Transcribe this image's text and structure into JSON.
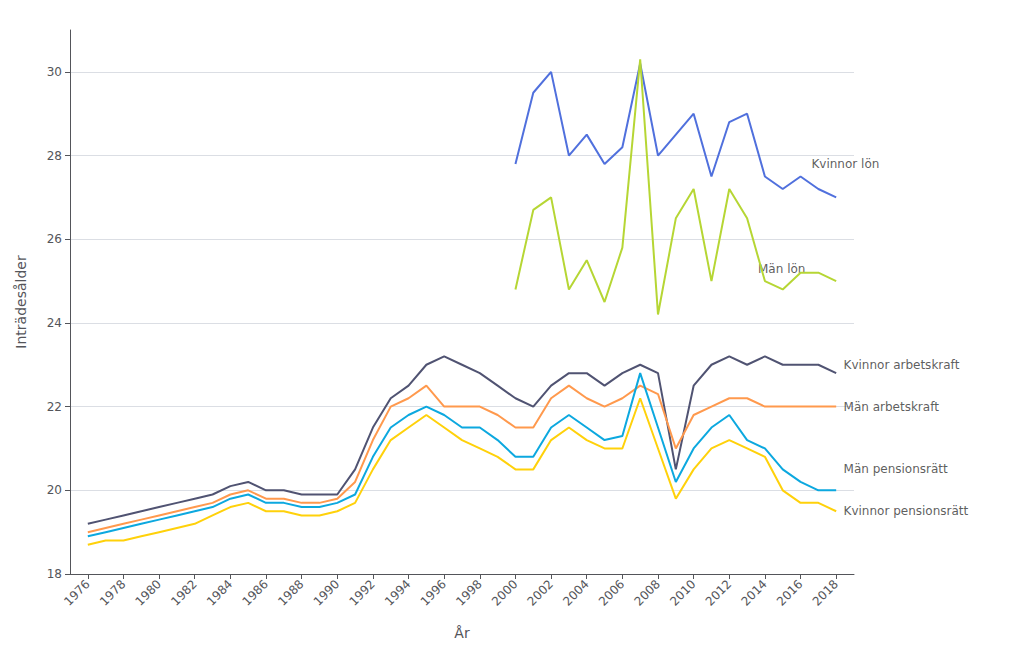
{
  "chart_data": {
    "type": "line",
    "xlabel": "År",
    "ylabel": "Inträdesålder",
    "xlim": [
      1975,
      2019
    ],
    "xticks": [
      1976,
      1978,
      1980,
      1982,
      1984,
      1986,
      1988,
      1990,
      1992,
      1994,
      1996,
      1998,
      2000,
      2002,
      2004,
      2006,
      2008,
      2010,
      2012,
      2014,
      2016,
      2018
    ],
    "ylim": [
      18,
      31
    ],
    "yticks": [
      18,
      20,
      22,
      24,
      26,
      28,
      30
    ],
    "grid": true,
    "series": [
      {
        "name": "Kvinnor lön",
        "x": [
          2000,
          2001,
          2002,
          2003,
          2004,
          2005,
          2006,
          2007,
          2008,
          2009,
          2010,
          2011,
          2012,
          2013,
          2014,
          2015,
          2016,
          2017,
          2018
        ],
        "values": [
          27.8,
          29.5,
          30.0,
          28.0,
          28.5,
          27.8,
          28.2,
          30.2,
          28.0,
          28.5,
          29.0,
          27.5,
          28.8,
          29.0,
          27.5,
          27.2,
          27.5,
          27.2,
          27.0
        ]
      },
      {
        "name": "Män lön",
        "x": [
          2000,
          2001,
          2002,
          2003,
          2004,
          2005,
          2006,
          2007,
          2008,
          2009,
          2010,
          2011,
          2012,
          2013,
          2014,
          2015,
          2016,
          2017,
          2018
        ],
        "values": [
          24.8,
          26.7,
          27.0,
          24.8,
          25.5,
          24.5,
          25.8,
          30.3,
          24.2,
          26.5,
          27.2,
          25.0,
          27.2,
          26.5,
          25.0,
          24.8,
          25.2,
          25.2,
          25.0
        ]
      },
      {
        "name": "Kvinnor arbetskraft",
        "x": [
          1976,
          1977,
          1978,
          1979,
          1980,
          1981,
          1982,
          1983,
          1984,
          1985,
          1986,
          1987,
          1988,
          1989,
          1990,
          1991,
          1992,
          1993,
          1994,
          1995,
          1996,
          1997,
          1998,
          1999,
          2000,
          2001,
          2002,
          2003,
          2004,
          2005,
          2006,
          2007,
          2008,
          2009,
          2010,
          2011,
          2012,
          2013,
          2014,
          2015,
          2016,
          2017,
          2018
        ],
        "values": [
          19.2,
          19.3,
          19.4,
          19.5,
          19.6,
          19.7,
          19.8,
          19.9,
          20.1,
          20.2,
          20.0,
          20.0,
          19.9,
          19.9,
          19.9,
          20.5,
          21.5,
          22.2,
          22.5,
          23.0,
          23.2,
          23.0,
          22.8,
          22.5,
          22.2,
          22.0,
          22.5,
          22.8,
          22.8,
          22.5,
          22.8,
          23.0,
          22.8,
          20.5,
          22.5,
          23.0,
          23.2,
          23.0,
          23.2,
          23.0,
          23.0,
          23.0,
          22.8
        ]
      },
      {
        "name": "Män arbetskraft",
        "x": [
          1976,
          1977,
          1978,
          1979,
          1980,
          1981,
          1982,
          1983,
          1984,
          1985,
          1986,
          1987,
          1988,
          1989,
          1990,
          1991,
          1992,
          1993,
          1994,
          1995,
          1996,
          1997,
          1998,
          1999,
          2000,
          2001,
          2002,
          2003,
          2004,
          2005,
          2006,
          2007,
          2008,
          2009,
          2010,
          2011,
          2012,
          2013,
          2014,
          2015,
          2016,
          2017,
          2018
        ],
        "values": [
          19.0,
          19.1,
          19.2,
          19.3,
          19.4,
          19.5,
          19.6,
          19.7,
          19.9,
          20.0,
          19.8,
          19.8,
          19.7,
          19.7,
          19.8,
          20.2,
          21.2,
          22.0,
          22.2,
          22.5,
          22.0,
          22.0,
          22.0,
          21.8,
          21.5,
          21.5,
          22.2,
          22.5,
          22.2,
          22.0,
          22.2,
          22.5,
          22.3,
          21.0,
          21.8,
          22.0,
          22.2,
          22.2,
          22.0,
          22.0,
          22.0,
          22.0,
          22.0
        ]
      },
      {
        "name": "Män pensionsrätt",
        "x": [
          1976,
          1977,
          1978,
          1979,
          1980,
          1981,
          1982,
          1983,
          1984,
          1985,
          1986,
          1987,
          1988,
          1989,
          1990,
          1991,
          1992,
          1993,
          1994,
          1995,
          1996,
          1997,
          1998,
          1999,
          2000,
          2001,
          2002,
          2003,
          2004,
          2005,
          2006,
          2007,
          2008,
          2009,
          2010,
          2011,
          2012,
          2013,
          2014,
          2015,
          2016,
          2017,
          2018
        ],
        "values": [
          18.9,
          19.0,
          19.1,
          19.2,
          19.3,
          19.4,
          19.5,
          19.6,
          19.8,
          19.9,
          19.7,
          19.7,
          19.6,
          19.6,
          19.7,
          19.9,
          20.8,
          21.5,
          21.8,
          22.0,
          21.8,
          21.5,
          21.5,
          21.2,
          20.8,
          20.8,
          21.5,
          21.8,
          21.5,
          21.2,
          21.3,
          22.8,
          21.5,
          20.2,
          21.0,
          21.5,
          21.8,
          21.2,
          21.0,
          20.5,
          20.2,
          20.0,
          20.0
        ]
      },
      {
        "name": "Kvinnor pensionsrätt",
        "x": [
          1976,
          1977,
          1978,
          1979,
          1980,
          1981,
          1982,
          1983,
          1984,
          1985,
          1986,
          1987,
          1988,
          1989,
          1990,
          1991,
          1992,
          1993,
          1994,
          1995,
          1996,
          1997,
          1998,
          1999,
          2000,
          2001,
          2002,
          2003,
          2004,
          2005,
          2006,
          2007,
          2008,
          2009,
          2010,
          2011,
          2012,
          2013,
          2014,
          2015,
          2016,
          2017,
          2018
        ],
        "values": [
          18.7,
          18.8,
          18.8,
          18.9,
          19.0,
          19.1,
          19.2,
          19.4,
          19.6,
          19.7,
          19.5,
          19.5,
          19.4,
          19.4,
          19.5,
          19.7,
          20.5,
          21.2,
          21.5,
          21.8,
          21.5,
          21.2,
          21.0,
          20.8,
          20.5,
          20.5,
          21.2,
          21.5,
          21.2,
          21.0,
          21.0,
          22.2,
          21.0,
          19.8,
          20.5,
          21.0,
          21.2,
          21.0,
          20.8,
          20.0,
          19.7,
          19.7,
          19.5
        ]
      }
    ],
    "annotations": [
      {
        "text": "Kvinnor lön",
        "x": 2016.5,
        "y": 27.8
      },
      {
        "text": "Män lön",
        "x": 2013.5,
        "y": 25.3
      },
      {
        "text": "Kvinnor arbetskraft",
        "x": 2018.3,
        "y": 23.0
      },
      {
        "text": "Män arbetskraft",
        "x": 2018.3,
        "y": 22.0
      },
      {
        "text": "Män pensionsrätt",
        "x": 2018.3,
        "y": 20.5
      },
      {
        "text": "Kvinnor pensionsrätt",
        "x": 2018.3,
        "y": 19.5
      }
    ]
  }
}
